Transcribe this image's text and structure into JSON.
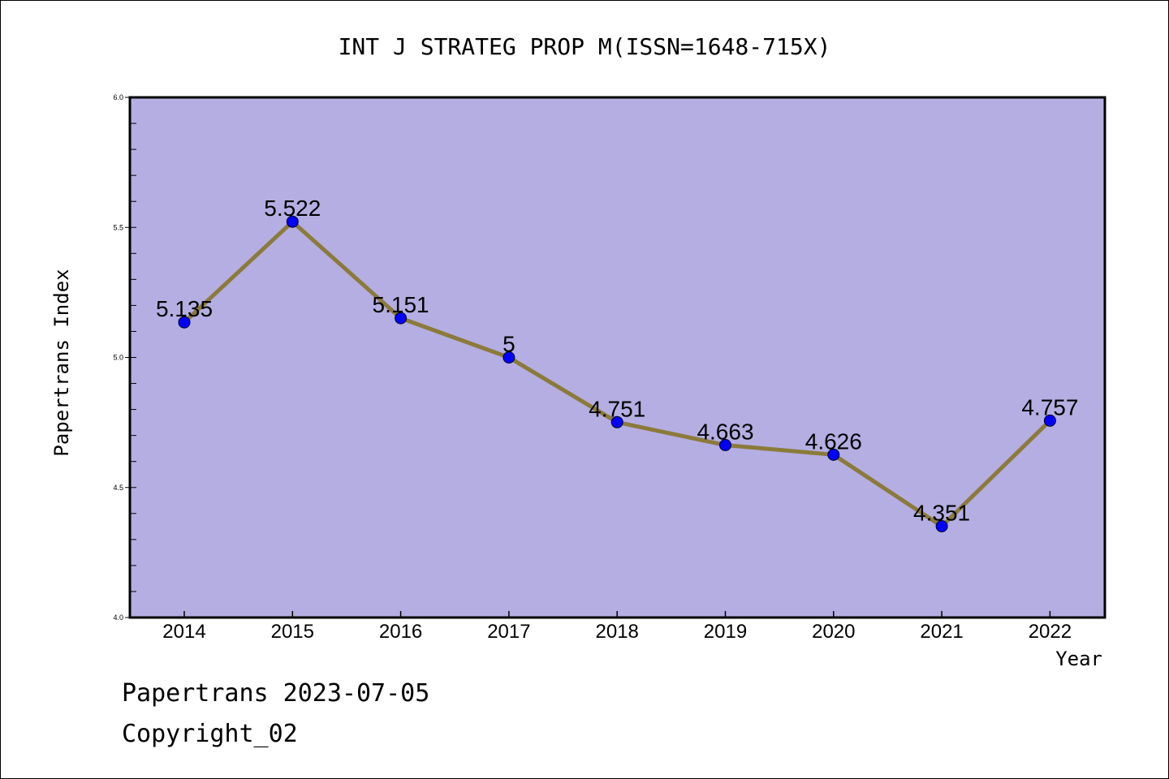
{
  "chart_data": {
    "type": "line",
    "title": "INT J STRATEG PROP M(ISSN=1648-715X)",
    "xlabel": "Year",
    "ylabel": "Papertrans Index",
    "categories": [
      "2014",
      "2015",
      "2016",
      "2017",
      "2018",
      "2019",
      "2020",
      "2021",
      "2022"
    ],
    "series": [
      {
        "values": [
          5.135,
          5.522,
          5.151,
          5,
          4.751,
          4.663,
          4.626,
          4.351,
          4.757
        ],
        "labels": [
          "5.135",
          "5.522",
          "5.151",
          "5",
          "4.751",
          "4.663",
          "4.626",
          "4.351",
          "4.757"
        ]
      }
    ],
    "ylim": [
      4.0,
      6.0
    ],
    "yticks": [
      "4.0",
      "4.5",
      "5.0",
      "5.5",
      "6.0"
    ],
    "grid": false,
    "colors": {
      "plot_background": "#b4aee2",
      "line": "#8b7a3a",
      "marker": "#0000ff"
    }
  },
  "footer": {
    "line1": "Papertrans 2023-07-05",
    "line2": "Copyright_02"
  }
}
